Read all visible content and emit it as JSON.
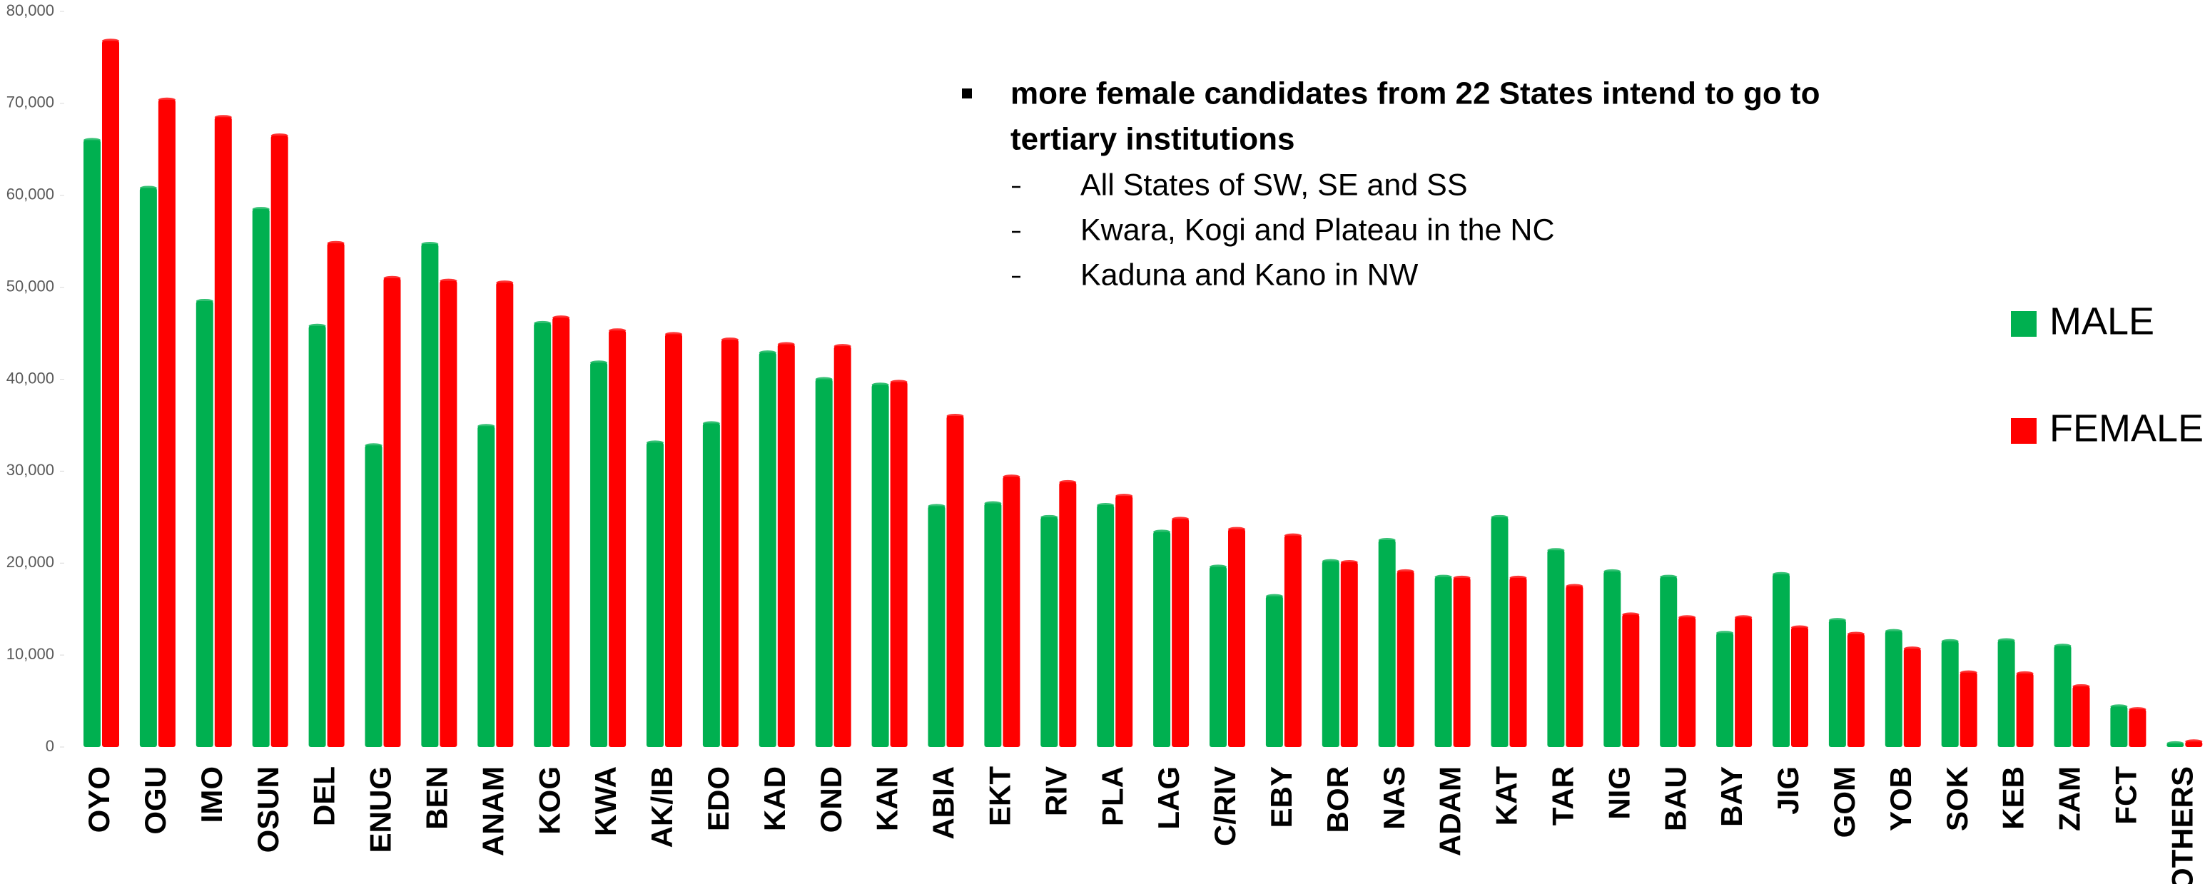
{
  "chart_data": {
    "type": "bar",
    "categories": [
      "OYO",
      "OGU",
      "IMO",
      "OSUN",
      "DEL",
      "ENUG",
      "BEN",
      "ANAM",
      "KOG",
      "KWA",
      "AK/IB",
      "EDO",
      "KAD",
      "OND",
      "KAN",
      "ABIA",
      "EKT",
      "RIV",
      "PLA",
      "LAG",
      "C/RIV",
      "EBY",
      "BOR",
      "NAS",
      "ADAM",
      "KAT",
      "TAR",
      "NIG",
      "BAU",
      "BAY",
      "JIG",
      "GOM",
      "YOB",
      "SOK",
      "KEB",
      "ZAM",
      "FCT",
      "OTHERS"
    ],
    "series": [
      {
        "name": "MALE",
        "color": "#00b050",
        "values": [
          66000,
          60800,
          48500,
          58500,
          45800,
          32800,
          54700,
          34900,
          46100,
          41800,
          33100,
          35200,
          42900,
          40000,
          39400,
          26200,
          26500,
          25000,
          26300,
          23400,
          19600,
          16400,
          20200,
          22500,
          18500,
          25000,
          21400,
          19100,
          18500,
          12400,
          18800,
          13800,
          12600,
          11500,
          11600,
          11000,
          4400,
          400
        ]
      },
      {
        "name": "FEMALE",
        "color": "#ff0000",
        "values": [
          76800,
          70400,
          68500,
          66500,
          54800,
          51000,
          50700,
          50500,
          46700,
          45300,
          44900,
          44300,
          43800,
          43600,
          39700,
          36000,
          29400,
          28800,
          27300,
          24800,
          23700,
          23000,
          20100,
          19100,
          18400,
          18400,
          17500,
          14400,
          14100,
          14100,
          13000,
          12300,
          10700,
          8100,
          8000,
          6600,
          4100,
          600
        ]
      }
    ],
    "ylim": [
      0,
      80000
    ],
    "yticks": [
      0,
      {
        "value": 10000,
        "label": "10,000"
      },
      {
        "value": 20000,
        "label": "20,000"
      },
      {
        "value": 30000,
        "label": "30,000"
      },
      {
        "value": 40000,
        "label": "40,000"
      },
      {
        "value": 50000,
        "label": "50,000"
      },
      {
        "value": 60000,
        "label": "60,000"
      },
      {
        "value": 70000,
        "label": "70,000"
      },
      {
        "value": 80000,
        "label": "80,000"
      }
    ],
    "grid": false,
    "legend": "right",
    "annotation": {
      "heading": [
        "more female candidates from 22 States intend to go to",
        "tertiary institutions"
      ],
      "items": [
        "All States of SW, SE and SS",
        "Kwara, Kogi and Plateau in the NC",
        "Kaduna and Kano in NW"
      ]
    }
  }
}
